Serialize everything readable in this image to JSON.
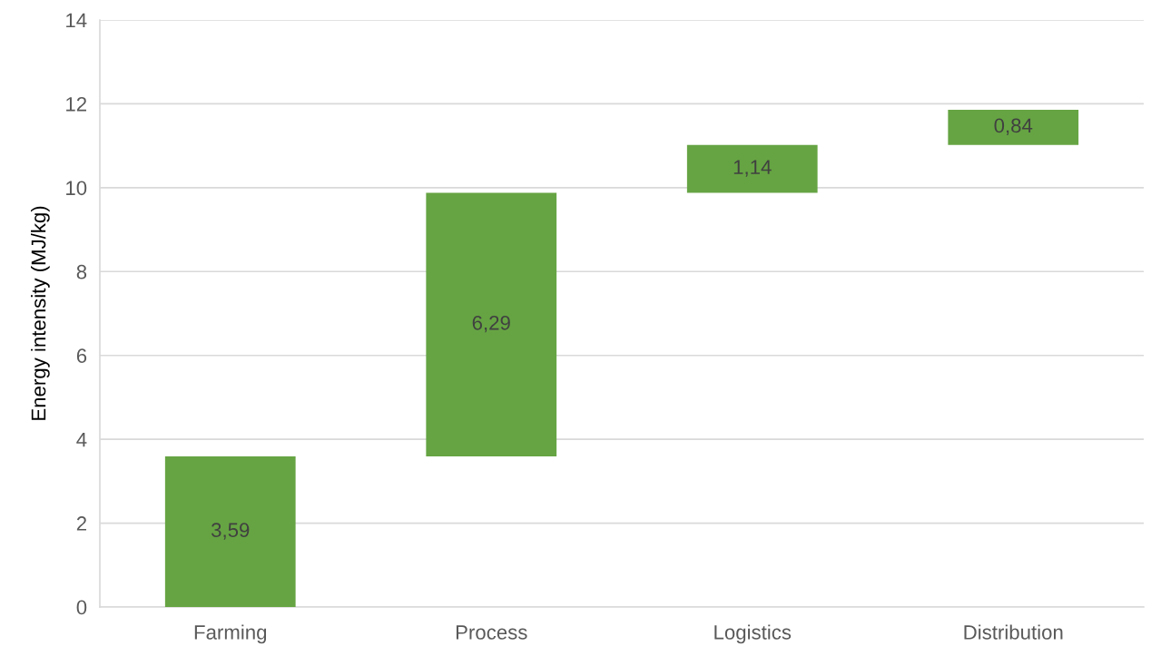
{
  "chart_data": {
    "type": "bar",
    "ylabel": "Energy intensity (MJ/kg)",
    "categories": [
      "Farming",
      "Process",
      "Logistics",
      "Distribution"
    ],
    "values": [
      3.59,
      6.29,
      1.14,
      0.84
    ],
    "base": [
      0,
      3.59,
      9.88,
      11.02
    ],
    "value_labels": [
      "3,59",
      "6,29",
      "1,14",
      "0,84"
    ],
    "color": "#66a443",
    "ylim": [
      0,
      14
    ],
    "yticks": [
      0,
      2,
      4,
      6,
      8,
      10,
      12,
      14
    ],
    "grid": "y"
  }
}
